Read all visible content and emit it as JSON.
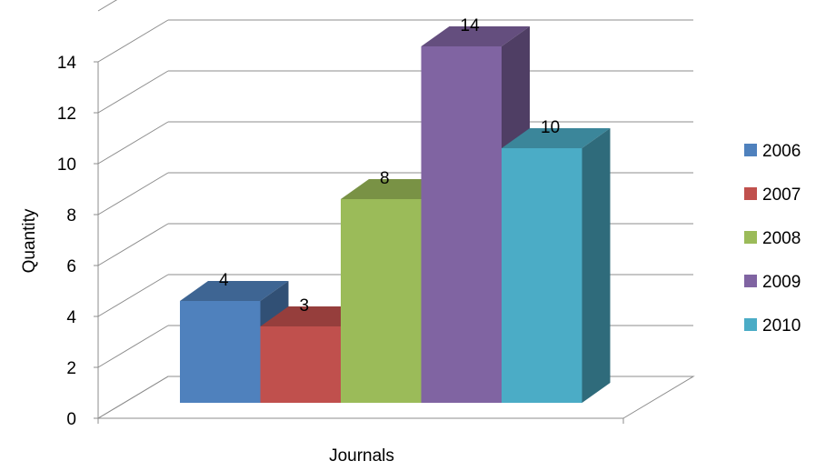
{
  "chart_data": {
    "type": "bar",
    "variant": "3d-clustered-column",
    "categories": [
      "Journals"
    ],
    "series": [
      {
        "name": "2006",
        "values": [
          4
        ],
        "color": "#4F81BD"
      },
      {
        "name": "2007",
        "values": [
          3
        ],
        "color": "#C0504D"
      },
      {
        "name": "2008",
        "values": [
          8
        ],
        "color": "#9BBB59"
      },
      {
        "name": "2009",
        "values": [
          14
        ],
        "color": "#8064A2"
      },
      {
        "name": "2010",
        "values": [
          10
        ],
        "color": "#4BACC6"
      }
    ],
    "xlabel": "Journals",
    "ylabel": "Quantity",
    "ylim": [
      0,
      14
    ],
    "yticks": [
      "0",
      "2",
      "4",
      "6",
      "8",
      "10",
      "12",
      "14"
    ],
    "grid": true,
    "data_labels": true,
    "legend_position": "right"
  }
}
